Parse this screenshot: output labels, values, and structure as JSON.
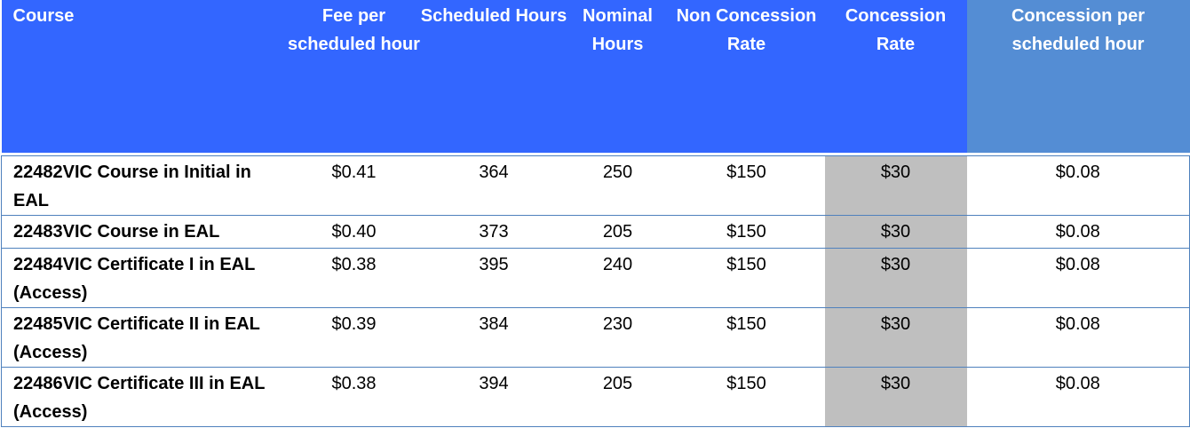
{
  "table": {
    "headers": {
      "course": "Course",
      "fee_per_hour": "Fee per scheduled hour",
      "scheduled_hours": "Scheduled Hours",
      "nominal_hours": "Nominal Hours",
      "non_concession_rate": "Non Concession Rate",
      "concession_rate": "Concession Rate",
      "concession_per_hour": "Concession per scheduled hour"
    },
    "rows": [
      {
        "course": "22482VIC Course in Initial in EAL",
        "fee_per_hour": "$0.41",
        "scheduled_hours": "364",
        "nominal_hours": "250",
        "non_concession_rate": "$150",
        "concession_rate": "$30",
        "concession_per_hour": "$0.08"
      },
      {
        "course": "22483VIC Course in EAL",
        "fee_per_hour": "$0.40",
        "scheduled_hours": "373",
        "nominal_hours": "205",
        "non_concession_rate": "$150",
        "concession_rate": "$30",
        "concession_per_hour": "$0.08"
      },
      {
        "course": "22484VIC Certificate I in EAL (Access)",
        "fee_per_hour": "$0.38",
        "scheduled_hours": "395",
        "nominal_hours": "240",
        "non_concession_rate": "$150",
        "concession_rate": "$30",
        "concession_per_hour": "$0.08"
      },
      {
        "course": "22485VIC Certificate II in EAL (Access)",
        "fee_per_hour": "$0.39",
        "scheduled_hours": "384",
        "nominal_hours": "230",
        "non_concession_rate": "$150",
        "concession_rate": "$30",
        "concession_per_hour": "$0.08"
      },
      {
        "course": "22486VIC Certificate III in EAL (Access)",
        "fee_per_hour": "$0.38",
        "scheduled_hours": "394",
        "nominal_hours": "205",
        "non_concession_rate": "$150",
        "concession_rate": "$30",
        "concession_per_hour": "$0.08"
      }
    ]
  },
  "colors": {
    "header_blue": "#3366ff",
    "header_light_blue": "#548dd4",
    "concession_gray": "#bfbfbf",
    "border_blue": "#4f81bd"
  }
}
